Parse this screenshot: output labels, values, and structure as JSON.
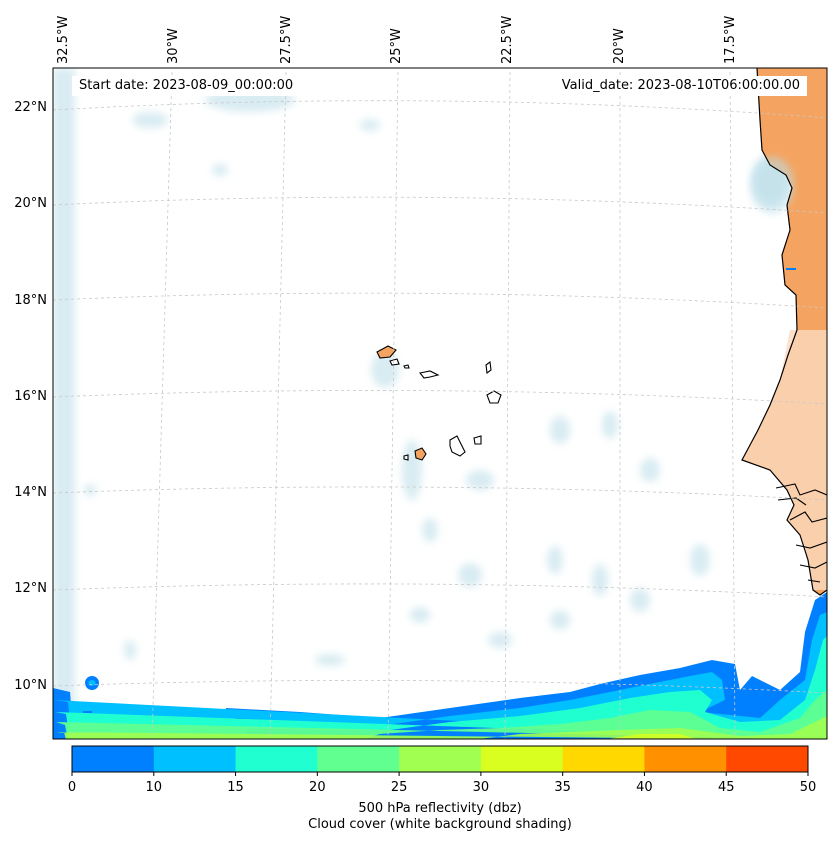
{
  "header": {
    "start_date": "Start date: 2023-08-09_00:00:00",
    "valid_date": "Valid_date: 2023-08-10T06:00:00.00"
  },
  "map": {
    "lon_labels": [
      "32.5°W",
      "30°W",
      "27.5°W",
      "25°W",
      "22.5°W",
      "20°W",
      "17.5°W"
    ],
    "lat_labels": [
      "22°N",
      "20°N",
      "18°N",
      "16°N",
      "14°N",
      "12°N",
      "10°N"
    ],
    "land_color": "#f4a460",
    "coast_color": "#000000",
    "grid": true
  },
  "colorbar": {
    "ticks": [
      "0",
      "10",
      "15",
      "20",
      "25",
      "30",
      "35",
      "40",
      "45",
      "50"
    ],
    "colors": [
      "#0080ff",
      "#00c0ff",
      "#20ffd0",
      "#60ff90",
      "#a0ff50",
      "#d8ff20",
      "#ffd800",
      "#ff9000",
      "#ff4800"
    ],
    "label_line1": "500 hPa reflectivity (dbz)",
    "label_line2": "Cloud cover (white background shading)"
  }
}
